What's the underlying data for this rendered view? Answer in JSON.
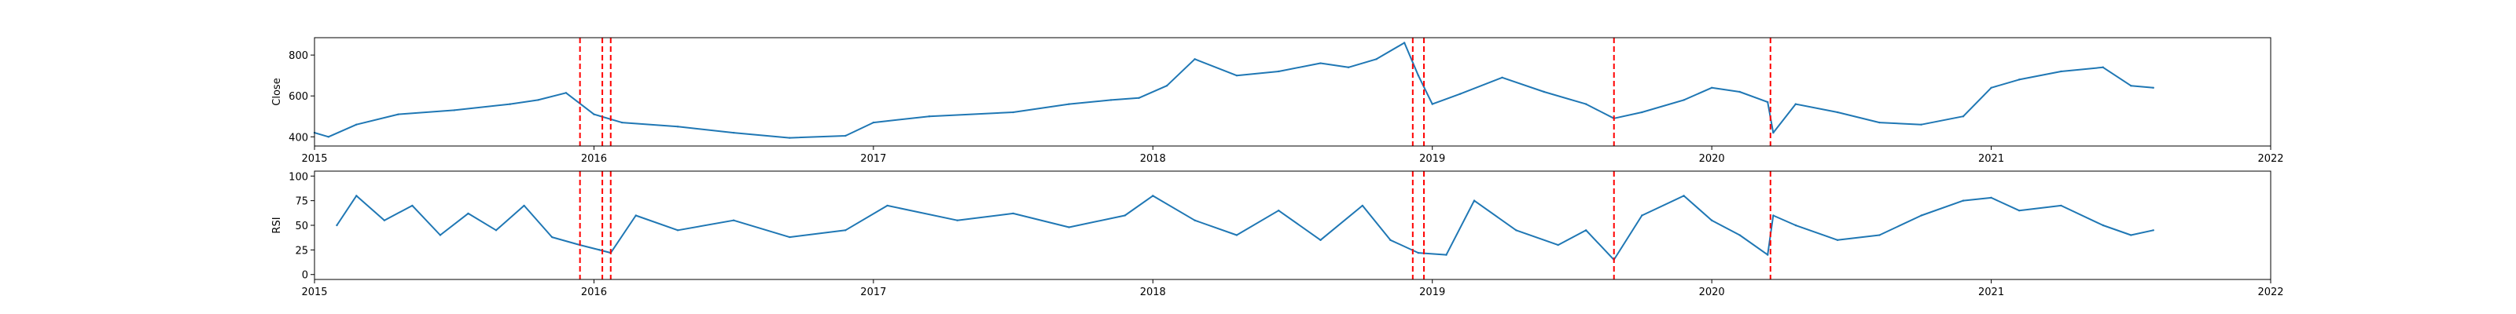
{
  "chart_data": [
    {
      "type": "line",
      "ylabel": "Close",
      "xlim": [
        2015.0,
        2022.0
      ],
      "ylim": [
        355,
        885
      ],
      "yticks": [
        400,
        600,
        800
      ],
      "xticks": [
        "2015",
        "2016",
        "2017",
        "2018",
        "2019",
        "2020",
        "2021",
        "2022"
      ],
      "x": [
        2015.0,
        2015.05,
        2015.15,
        2015.3,
        2015.5,
        2015.7,
        2015.8,
        2015.9,
        2016.0,
        2016.1,
        2016.3,
        2016.5,
        2016.7,
        2016.9,
        2017.0,
        2017.2,
        2017.5,
        2017.7,
        2017.85,
        2017.95,
        2018.05,
        2018.15,
        2018.3,
        2018.45,
        2018.6,
        2018.7,
        2018.8,
        2018.9,
        2018.95,
        2019.0,
        2019.1,
        2019.25,
        2019.4,
        2019.55,
        2019.65,
        2019.75,
        2019.9,
        2020.0,
        2020.1,
        2020.2,
        2020.22,
        2020.3,
        2020.45,
        2020.6,
        2020.75,
        2020.9,
        2021.0,
        2021.1,
        2021.25,
        2021.4,
        2021.5,
        2021.58
      ],
      "series": [
        {
          "color": "#1f77b4",
          "values": [
            420,
            400,
            460,
            510,
            530,
            560,
            580,
            615,
            510,
            470,
            450,
            420,
            395,
            405,
            470,
            500,
            520,
            560,
            580,
            590,
            650,
            780,
            700,
            720,
            760,
            740,
            780,
            860,
            700,
            560,
            610,
            690,
            620,
            560,
            490,
            520,
            580,
            640,
            620,
            570,
            420,
            560,
            520,
            470,
            460,
            500,
            640,
            680,
            720,
            740,
            650,
            640
          ]
        }
      ],
      "markers": {
        "color": "#ff0000",
        "style": "dashed",
        "x": [
          2015.95,
          2016.03,
          2016.06,
          2018.93,
          2018.97,
          2019.65,
          2020.21
        ]
      }
    },
    {
      "type": "line",
      "ylabel": "RSI",
      "xlim": [
        2015.0,
        2022.0
      ],
      "ylim": [
        -5,
        105
      ],
      "yticks": [
        0,
        25,
        50,
        75,
        100
      ],
      "xticks": [
        "2015",
        "2016",
        "2017",
        "2018",
        "2019",
        "2020",
        "2021",
        "2022"
      ],
      "x": [
        2015.08,
        2015.15,
        2015.25,
        2015.35,
        2015.45,
        2015.55,
        2015.65,
        2015.75,
        2015.85,
        2015.95,
        2016.02,
        2016.06,
        2016.15,
        2016.3,
        2016.5,
        2016.7,
        2016.9,
        2017.05,
        2017.3,
        2017.5,
        2017.7,
        2017.9,
        2018.0,
        2018.15,
        2018.3,
        2018.45,
        2018.6,
        2018.75,
        2018.85,
        2018.95,
        2019.05,
        2019.15,
        2019.3,
        2019.45,
        2019.55,
        2019.65,
        2019.75,
        2019.9,
        2020.0,
        2020.1,
        2020.2,
        2020.22,
        2020.3,
        2020.45,
        2020.6,
        2020.75,
        2020.9,
        2021.0,
        2021.1,
        2021.25,
        2021.4,
        2021.5,
        2021.58
      ],
      "series": [
        {
          "color": "#1f77b4",
          "values": [
            50,
            80,
            55,
            70,
            40,
            62,
            45,
            70,
            38,
            30,
            25,
            22,
            60,
            45,
            55,
            38,
            45,
            70,
            55,
            62,
            48,
            60,
            80,
            55,
            40,
            65,
            35,
            70,
            35,
            22,
            20,
            75,
            45,
            30,
            45,
            15,
            60,
            80,
            55,
            40,
            20,
            60,
            50,
            35,
            40,
            60,
            75,
            78,
            65,
            70,
            50,
            40,
            45
          ]
        }
      ],
      "markers": {
        "color": "#ff0000",
        "style": "dashed",
        "x": [
          2015.95,
          2016.03,
          2016.06,
          2018.93,
          2018.97,
          2019.65,
          2020.21
        ]
      }
    }
  ]
}
